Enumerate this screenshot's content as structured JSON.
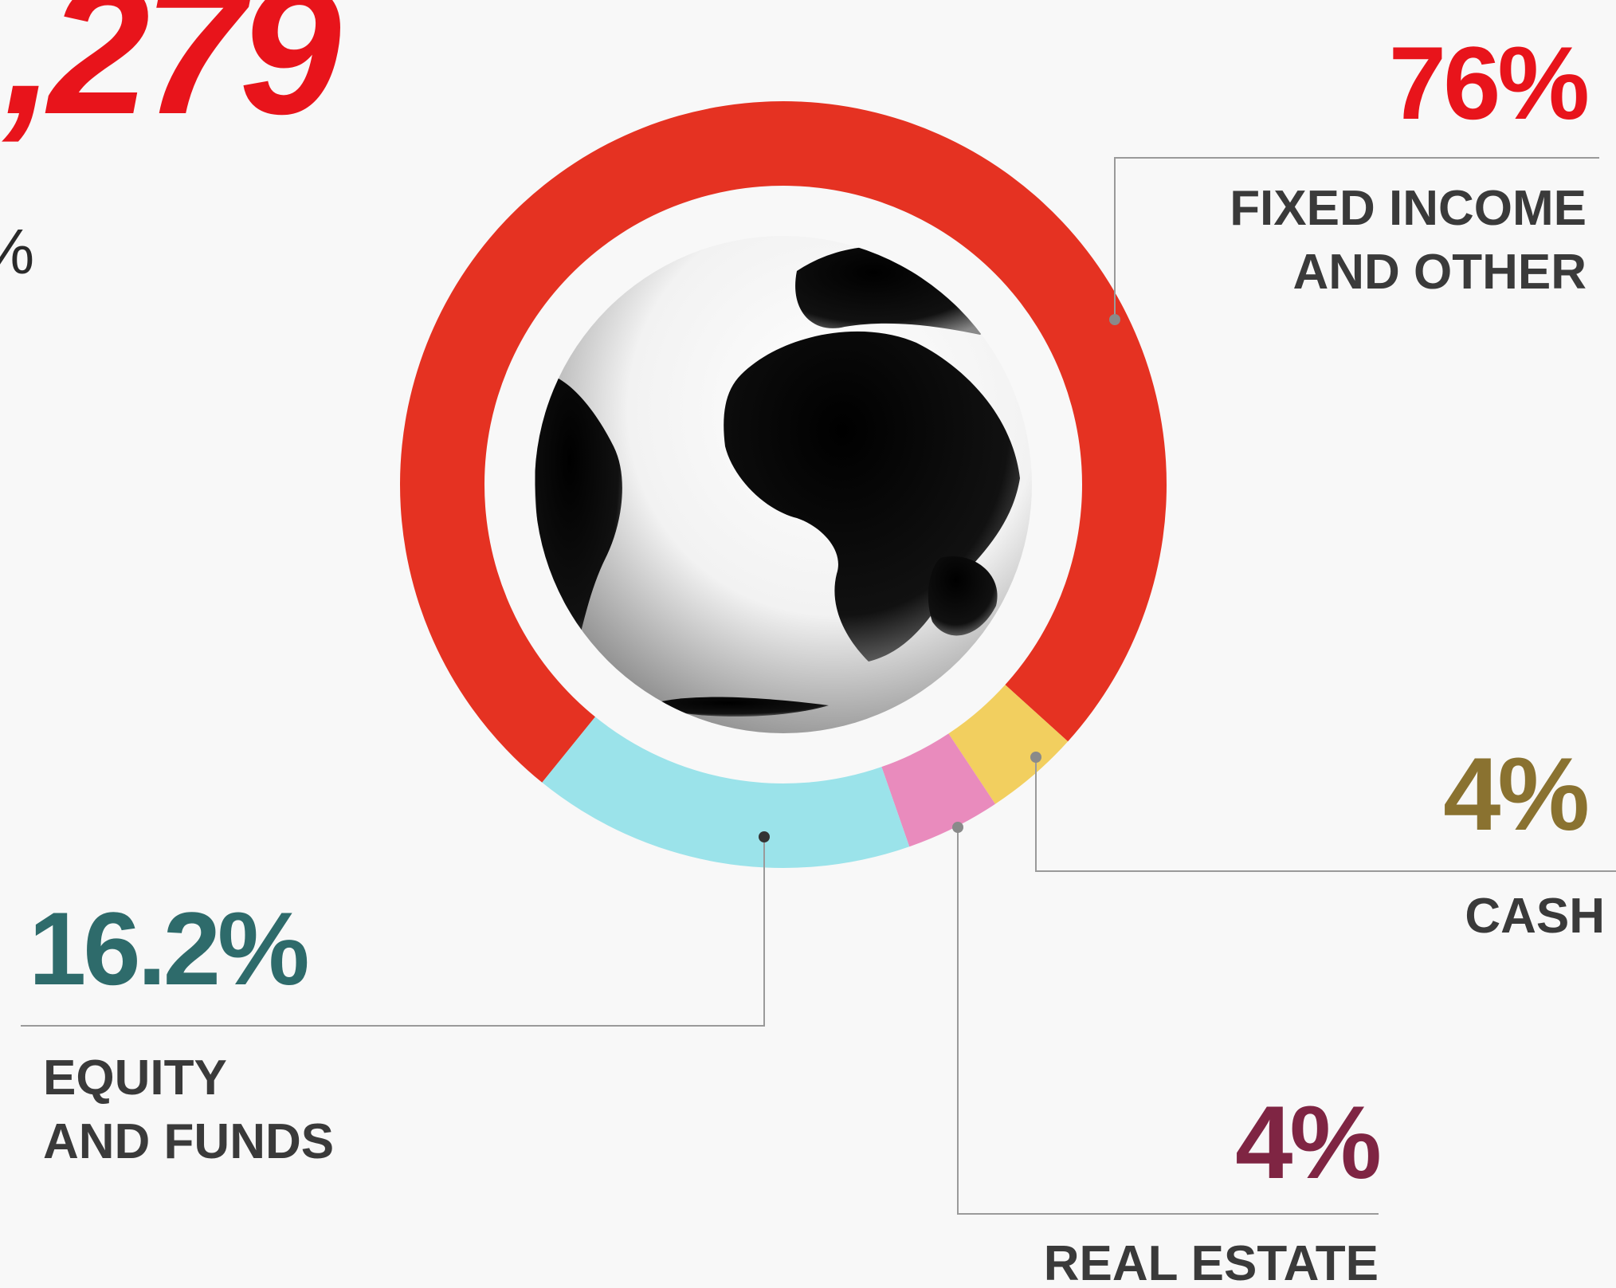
{
  "chart_data": {
    "type": "donut",
    "headline": ",279",
    "headline_suffix": "%",
    "categories": [
      [
        "FIXED INCOME",
        "AND OTHER"
      ],
      [
        "CASH"
      ],
      [
        "REAL ESTATE"
      ],
      [
        "EQUITY",
        "AND FUNDS"
      ]
    ],
    "values": [
      76,
      4,
      4,
      16.2
    ],
    "value_labels": [
      "76%",
      "4%",
      "4%",
      "16.2%"
    ],
    "colors": [
      "#e53222",
      "#f2cf5f",
      "#e98bbd",
      "#9be3ea"
    ],
    "label_colors": [
      "#e8141b",
      "#8a7230",
      "#7f2543",
      "#2e6b6b"
    ]
  }
}
